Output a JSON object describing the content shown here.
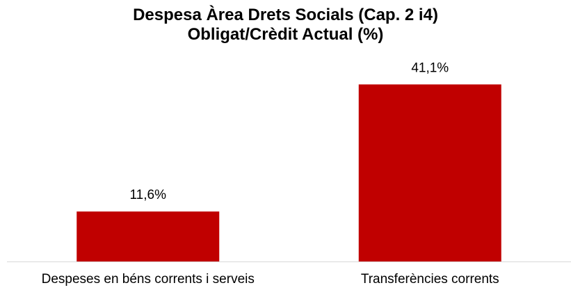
{
  "chart_data": {
    "type": "bar",
    "title_lines": [
      "Despesa Àrea Drets Socials (Cap. 2 i4)",
      "Obligat/Crèdit Actual (%)"
    ],
    "categories": [
      "Despeses en béns corrents i serveis",
      "Transferències corrents"
    ],
    "values": [
      11.6,
      41.1
    ],
    "value_labels": [
      "11,6%",
      "41,1%"
    ],
    "ylim": [
      0,
      45.2
    ],
    "bar_color": "#C00000",
    "grid": false,
    "legend": "none"
  }
}
